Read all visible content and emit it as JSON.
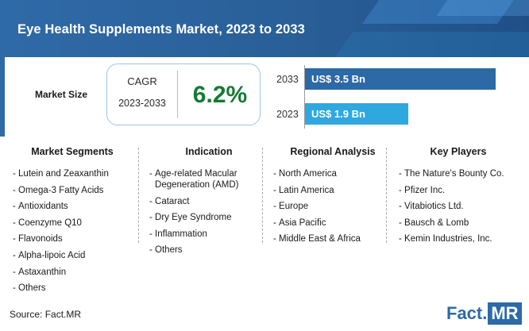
{
  "header": {
    "title": "Eye Health Supplements Market, 2023 to 2033"
  },
  "market_size": {
    "label": "Market Size",
    "cagr_label": "CAGR",
    "cagr_years": "2023-2033",
    "cagr_value": "6.2%"
  },
  "bars": [
    {
      "year": "2033",
      "label": "US$ 3.5 Bn",
      "value": 3.5,
      "color": "#2c69a6"
    },
    {
      "year": "2023",
      "label": "US$ 1.9 Bn",
      "value": 1.9,
      "color": "#2fa8e0"
    }
  ],
  "columns": [
    {
      "title": "Market Segments",
      "items": [
        "Lutein and Zeaxanthin",
        "Omega-3 Fatty Acids",
        "Antioxidants",
        "Coenzyme Q10",
        "Flavonoids",
        "Alpha-lipoic Acid",
        "Astaxanthin",
        "Others"
      ]
    },
    {
      "title": "Indication",
      "items": [
        "Age-related Macular Degeneration (AMD)",
        "Cataract",
        "Dry Eye Syndrome",
        "Inflammation",
        "Others"
      ]
    },
    {
      "title": "Regional Analysis",
      "items": [
        "North America",
        "Latin America",
        "Europe",
        "Asia Pacific",
        "Middle East & Africa"
      ]
    },
    {
      "title": "Key Players",
      "items": [
        "The Nature's Bounty Co.",
        "Pfizer Inc.",
        "Vitabiotics Ltd.",
        "Bausch & Lomb",
        "Kemin Industries, Inc."
      ]
    }
  ],
  "footer": {
    "source": "Source: Fact.MR",
    "logo_left": "Fact.",
    "logo_right": "MR"
  }
}
